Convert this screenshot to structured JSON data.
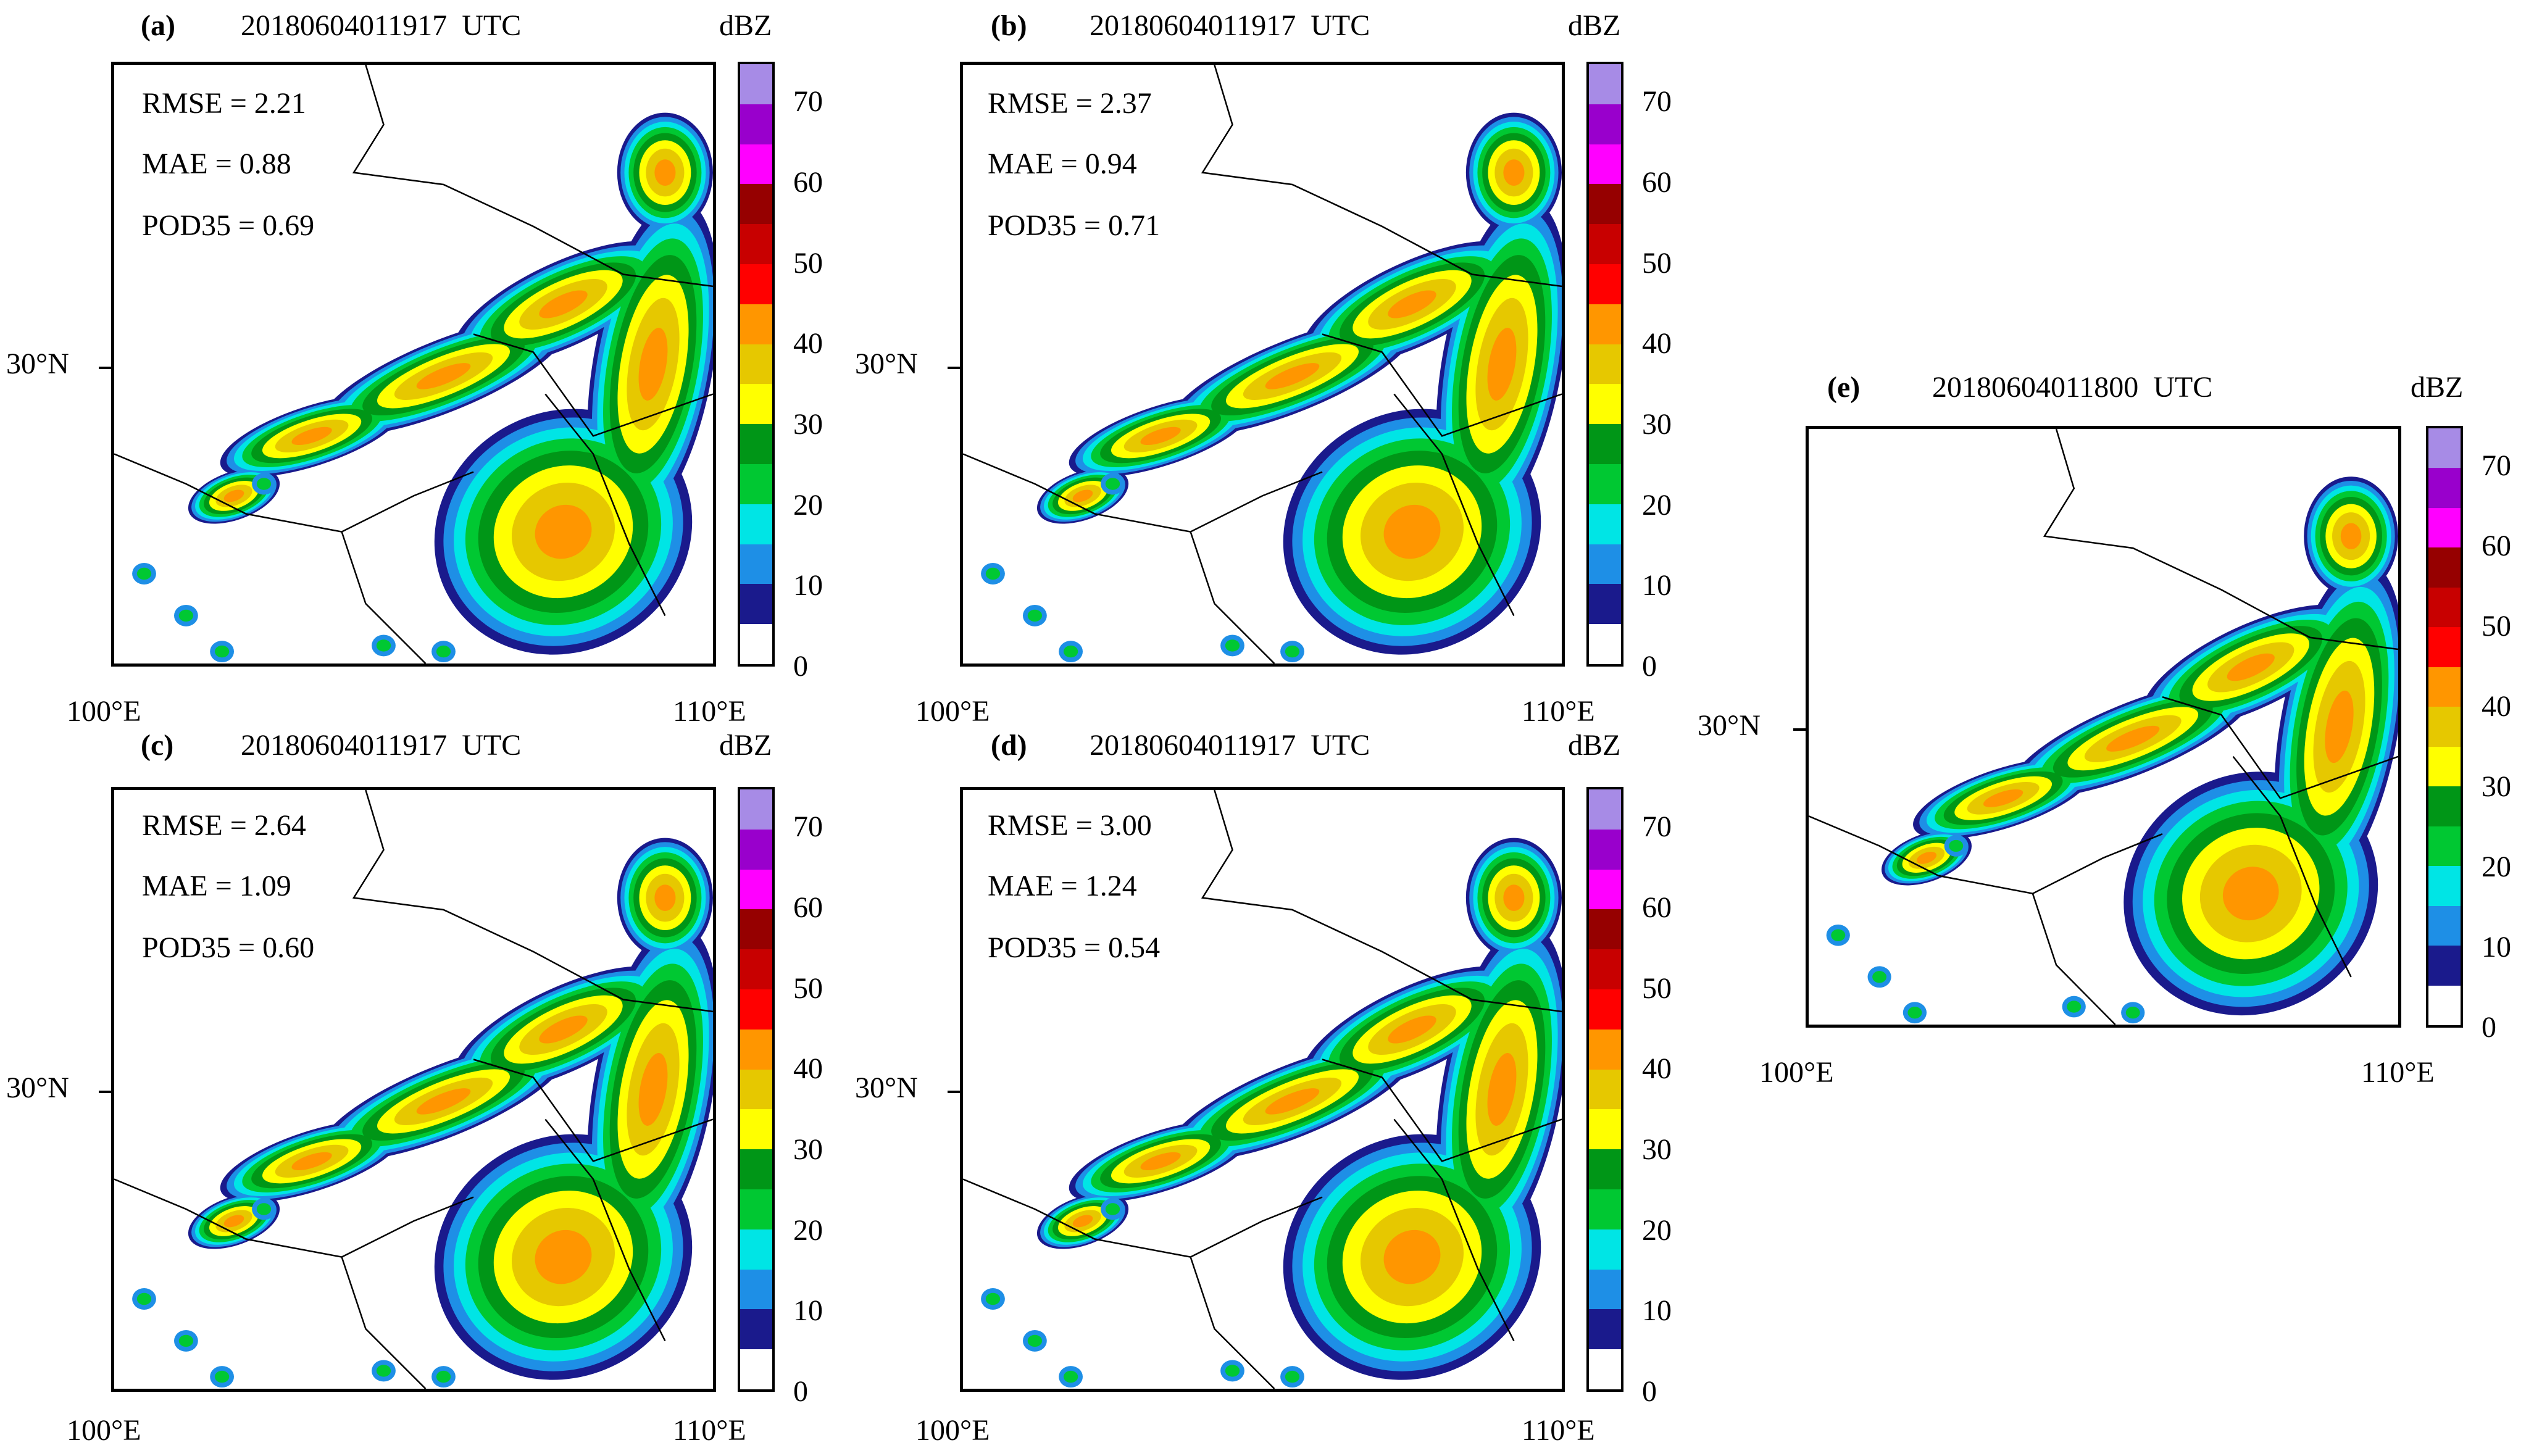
{
  "figure": {
    "unit_label": "dBZ",
    "colorbar": {
      "colors": [
        "#ffffff",
        "#1a1a8c",
        "#1e8fe6",
        "#00e5e5",
        "#00c832",
        "#009617",
        "#ffff00",
        "#e6c800",
        "#ff9600",
        "#ff0000",
        "#c80000",
        "#960000",
        "#ff00ff",
        "#9900cc",
        "#a78be6"
      ],
      "tick_labels": [
        "0",
        "10",
        "20",
        "30",
        "40",
        "50",
        "60",
        "70"
      ]
    },
    "panels": [
      {
        "id": "a",
        "label": "(a)",
        "time": "20180604011917  UTC",
        "stats": [
          "RMSE = 2.21",
          "MAE = 0.88",
          "POD35 = 0.69"
        ],
        "y_label": "30°N",
        "x_labels": [
          "100°E",
          "110°E"
        ]
      },
      {
        "id": "b",
        "label": "(b)",
        "time": "20180604011917  UTC",
        "stats": [
          "RMSE = 2.37",
          "MAE = 0.94",
          "POD35 = 0.71"
        ],
        "y_label": "30°N",
        "x_labels": [
          "100°E",
          "110°E"
        ]
      },
      {
        "id": "c",
        "label": "(c)",
        "time": "20180604011917  UTC",
        "stats": [
          "RMSE = 2.64",
          "MAE = 1.09",
          "POD35 = 0.60"
        ],
        "y_label": "30°N",
        "x_labels": [
          "100°E",
          "110°E"
        ]
      },
      {
        "id": "d",
        "label": "(d)",
        "time": "20180604011917  UTC",
        "stats": [
          "RMSE = 3.00",
          "MAE = 1.24",
          "POD35 = 0.54"
        ],
        "y_label": "30°N",
        "x_labels": [
          "100°E",
          "110°E"
        ]
      },
      {
        "id": "e",
        "label": "(e)",
        "time": "20180604011800  UTC",
        "stats": [],
        "y_label": "30°N",
        "x_labels": [
          "100°E",
          "110°E"
        ]
      }
    ]
  }
}
